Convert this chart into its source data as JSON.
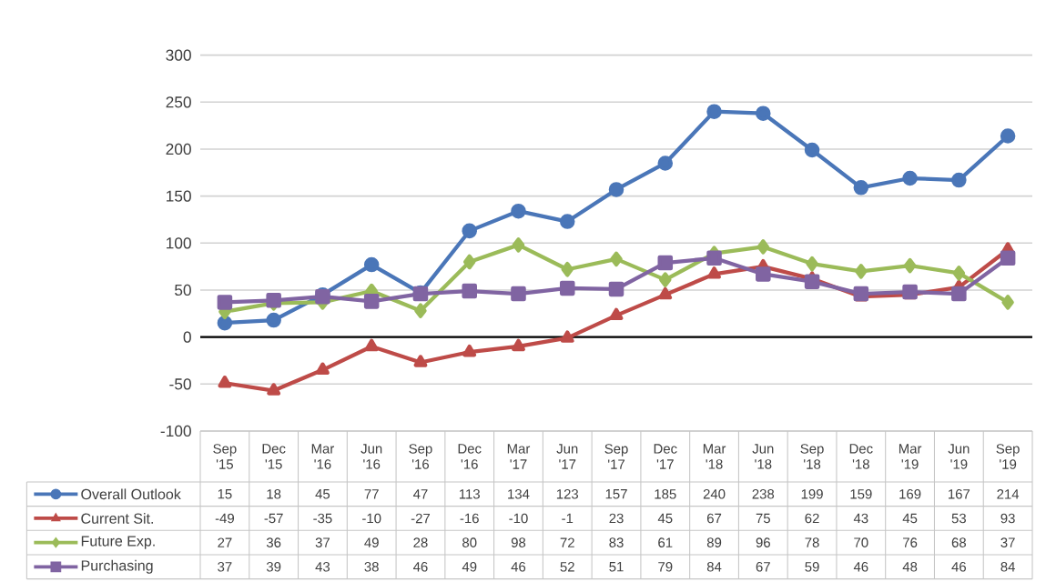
{
  "chart_data": {
    "type": "line",
    "categories": [
      "Sep '15",
      "Dec '15",
      "Mar '16",
      "Jun '16",
      "Sep '16",
      "Dec '16",
      "Mar '17",
      "Jun '17",
      "Sep '17",
      "Dec '17",
      "Mar '18",
      "Jun '18",
      "Sep '18",
      "Dec '18",
      "Mar '19",
      "Jun '19",
      "Sep '19"
    ],
    "series": [
      {
        "name": "Overall Outlook",
        "color": "#4a76b8",
        "marker": "circle",
        "values": [
          15,
          18,
          45,
          77,
          47,
          113,
          134,
          123,
          157,
          185,
          240,
          238,
          199,
          159,
          169,
          167,
          214
        ]
      },
      {
        "name": "Current Sit.",
        "color": "#be4b48",
        "marker": "triangle",
        "values": [
          -49,
          -57,
          -35,
          -10,
          -27,
          -16,
          -10,
          -1,
          23,
          45,
          67,
          75,
          62,
          43,
          45,
          53,
          93
        ]
      },
      {
        "name": "Future Exp.",
        "color": "#9bbb59",
        "marker": "diamond",
        "values": [
          27,
          36,
          37,
          49,
          28,
          80,
          98,
          72,
          83,
          61,
          89,
          96,
          78,
          70,
          76,
          68,
          37
        ]
      },
      {
        "name": "Purchasing",
        "color": "#8064a2",
        "marker": "square",
        "values": [
          37,
          39,
          43,
          38,
          46,
          49,
          46,
          52,
          51,
          79,
          84,
          67,
          59,
          46,
          48,
          46,
          84
        ]
      }
    ],
    "ylim": [
      -100,
      300
    ],
    "yticks": [
      -100,
      -50,
      0,
      50,
      100,
      150,
      200,
      250,
      300
    ],
    "grid": "y",
    "legend": "bottom",
    "data_labels": true,
    "line_style": "solid"
  }
}
